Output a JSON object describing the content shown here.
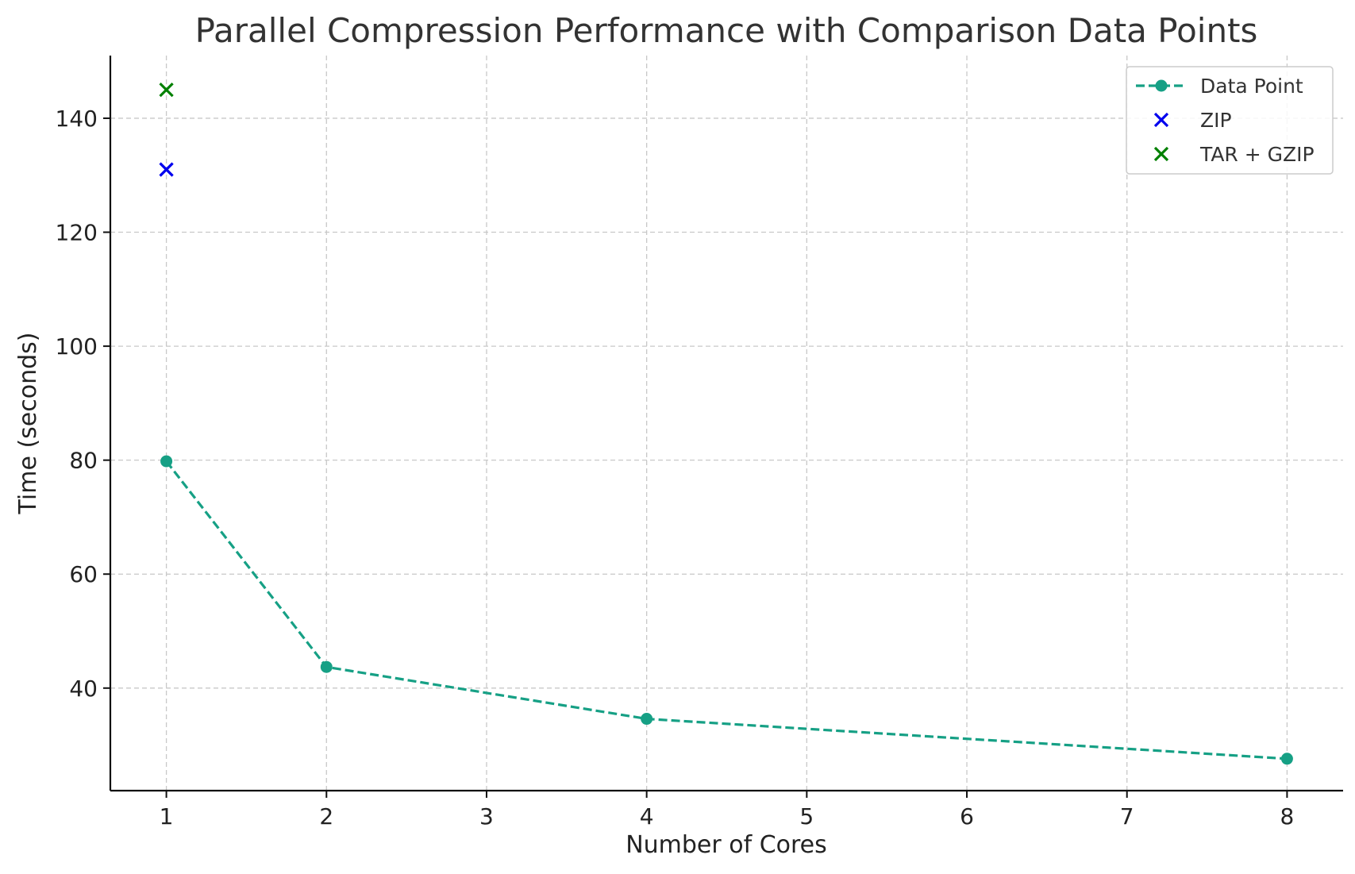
{
  "chart_data": {
    "type": "line",
    "title": "Parallel Compression Performance with Comparison Data Points",
    "xlabel": "Number of Cores",
    "ylabel": "Time (seconds)",
    "xlim": [
      0.65,
      8.35
    ],
    "ylim": [
      22,
      151
    ],
    "xticks": [
      1,
      2,
      3,
      4,
      5,
      6,
      7,
      8
    ],
    "yticks": [
      40,
      60,
      80,
      100,
      120,
      140
    ],
    "grid": true,
    "legend_position": "top-right",
    "series": [
      {
        "name": "Data Point",
        "kind": "line",
        "line_style": "dashed",
        "marker": "circle",
        "color": "#16a085",
        "x": [
          1,
          2,
          4,
          8
        ],
        "y": [
          79.8,
          43.7,
          34.6,
          27.6
        ]
      },
      {
        "name": "ZIP",
        "kind": "scatter",
        "marker": "x",
        "color": "#0000ee",
        "x": [
          1
        ],
        "y": [
          131
        ]
      },
      {
        "name": "TAR + GZIP",
        "kind": "scatter",
        "marker": "x",
        "color": "#008000",
        "x": [
          1
        ],
        "y": [
          145
        ]
      }
    ]
  }
}
